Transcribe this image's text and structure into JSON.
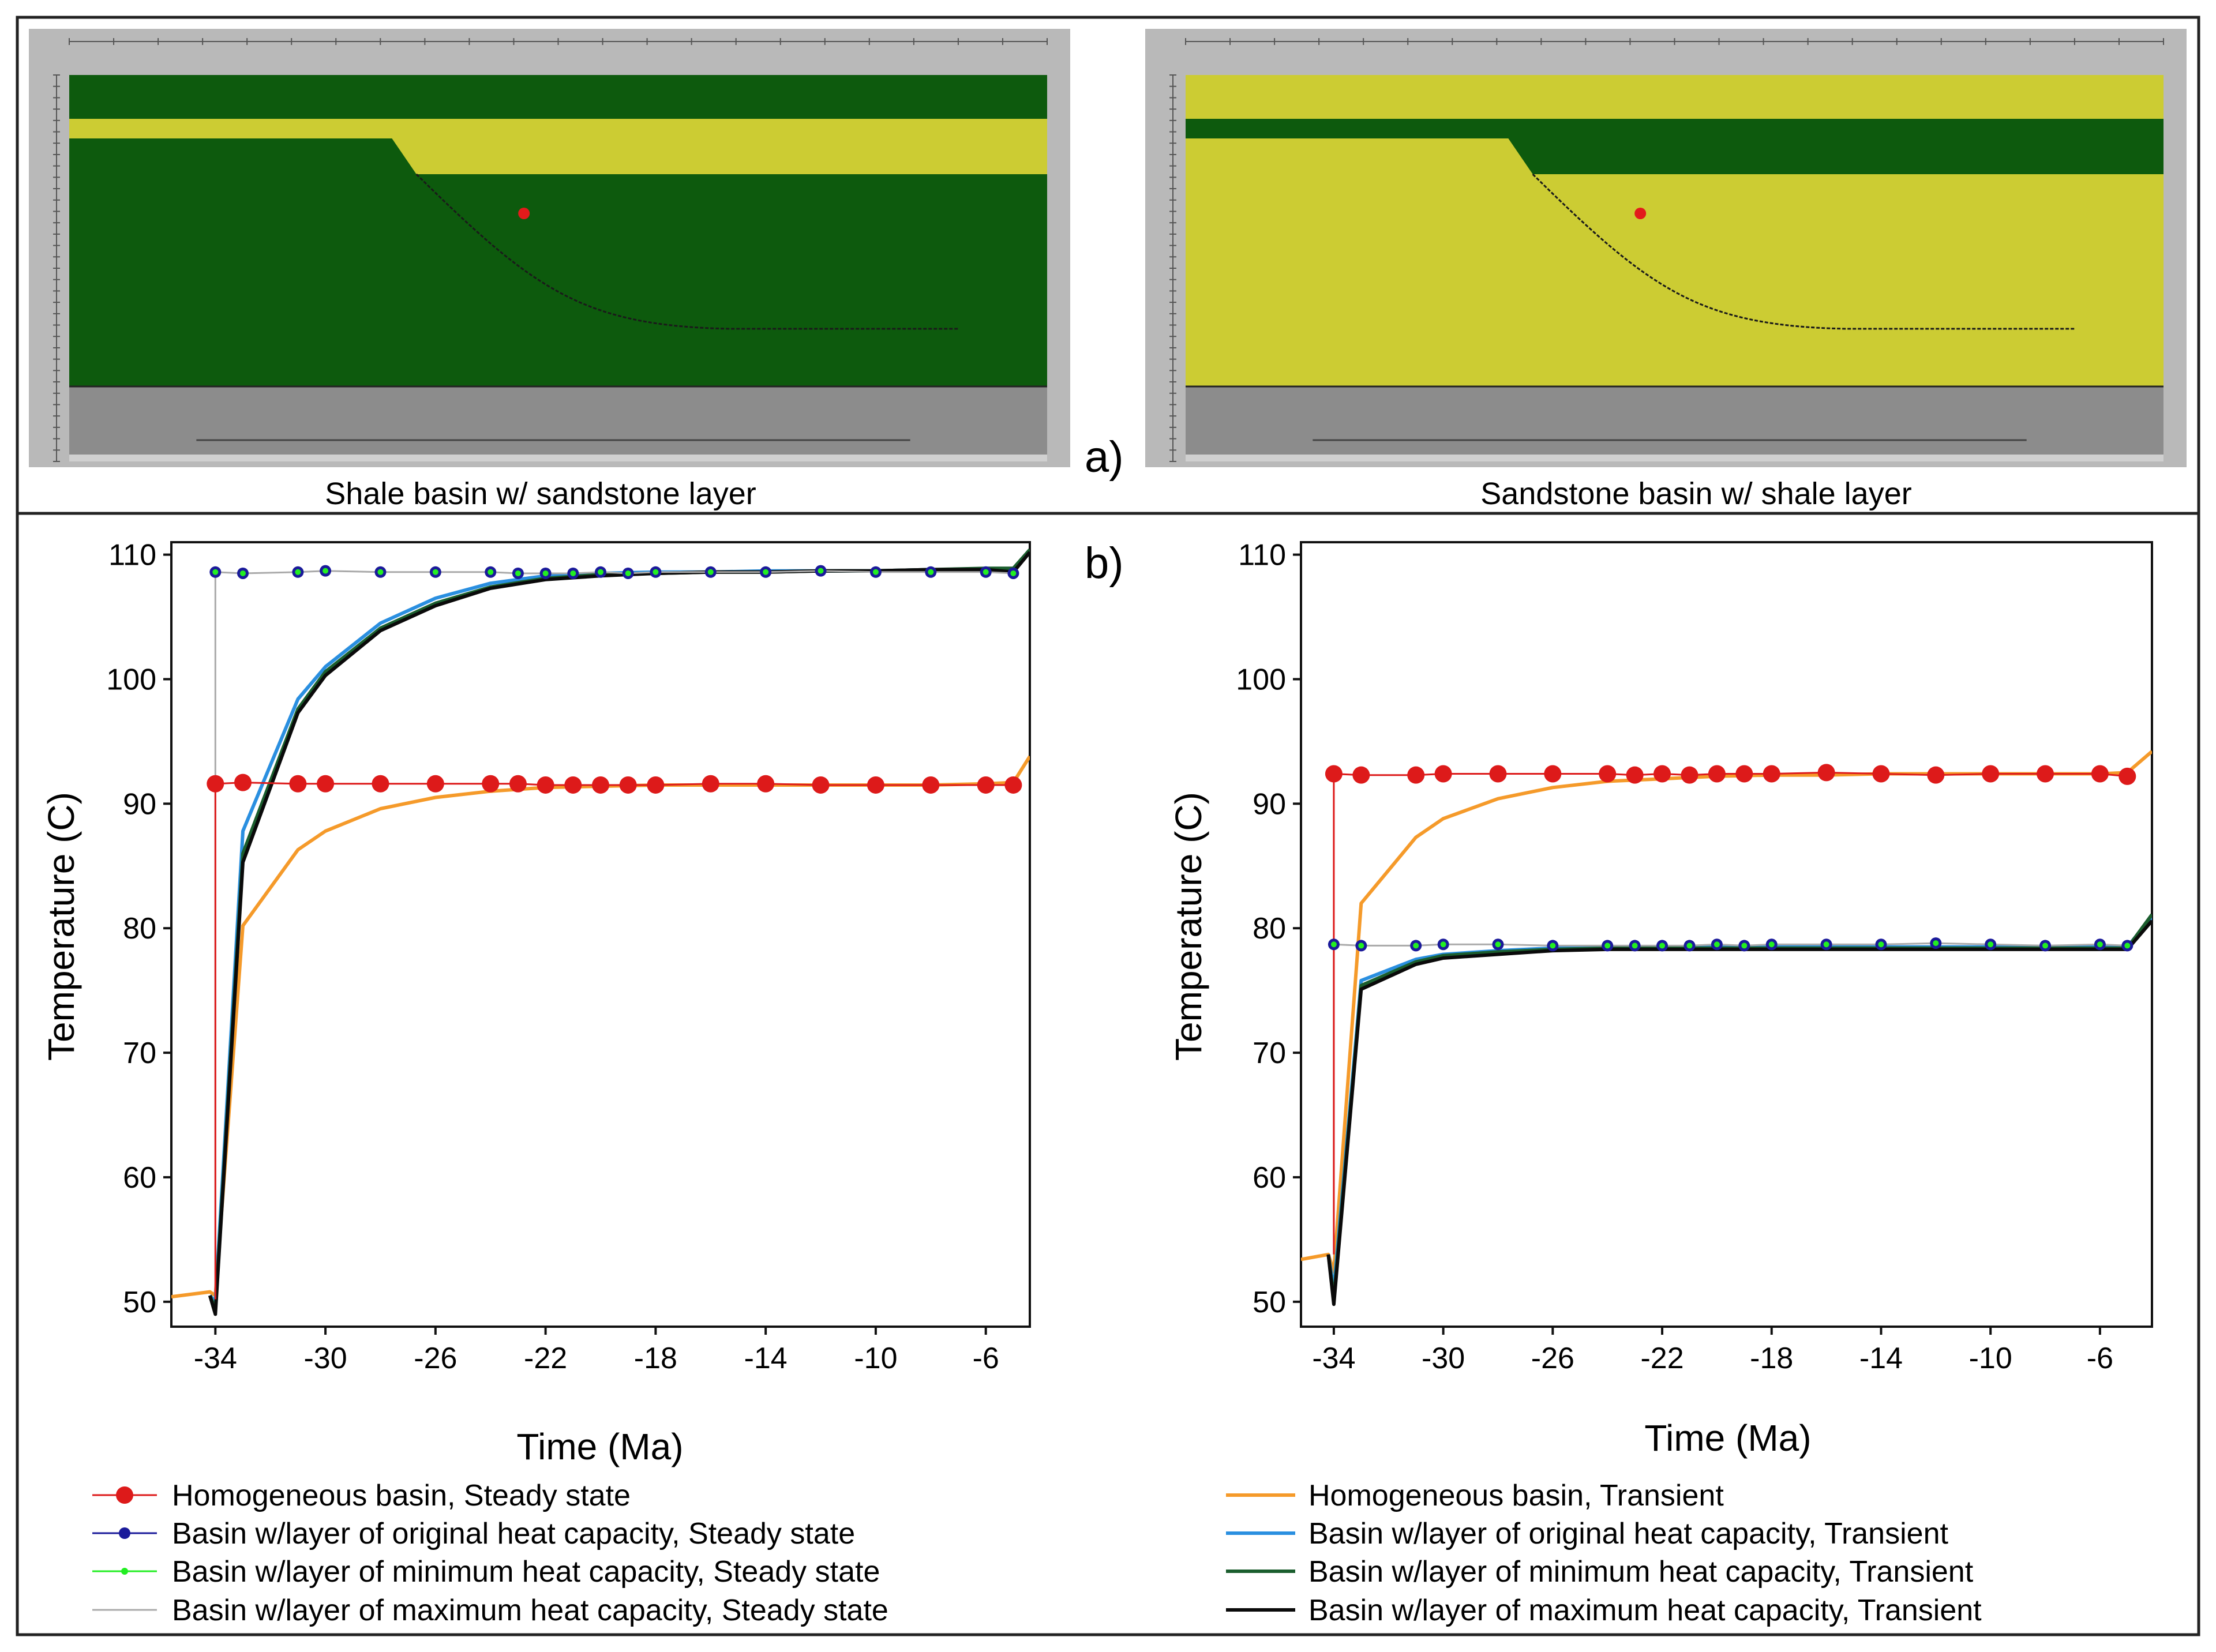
{
  "panel_labels": {
    "a": "a)",
    "b": "b)"
  },
  "sections": [
    {
      "caption": "Shale basin w/ sandstone layer"
    },
    {
      "caption": "Sandstone basin w/ shale layer"
    }
  ],
  "colors": {
    "shale": "#0d5a0d",
    "sandstone": "#cccc33",
    "basement": "#8c8c8c",
    "frame": "#b9b9b9",
    "steady_homogeneous": "#dd1a1a",
    "steady_original": "#1a1a9a",
    "steady_minimum": "#22ee22",
    "steady_maximum": "#aaaaaa",
    "transient_homogeneous": "#f59a2a",
    "transient_original": "#2a8fe0",
    "transient_minimum": "#1b5e2e",
    "transient_maximum": "#0a0a0a"
  },
  "legend": {
    "left": [
      {
        "label": "Homogeneous basin, Steady state",
        "color": "#dd1a1a",
        "marker": "big-dot"
      },
      {
        "label": "Basin w/layer of original heat capacity, Steady state",
        "color": "#1a1a9a",
        "marker": "dot"
      },
      {
        "label": "Basin w/layer of minimum heat capacity, Steady state",
        "color": "#22ee22",
        "marker": "small-dot"
      },
      {
        "label": "Basin w/layer of maximum heat capacity, Steady state",
        "color": "#aaaaaa",
        "marker": "none"
      }
    ],
    "right": [
      {
        "label": "Homogeneous basin, Transient",
        "color": "#f59a2a"
      },
      {
        "label": "Basin w/layer of original heat capacity, Transient",
        "color": "#2a8fe0"
      },
      {
        "label": "Basin w/layer of minimum heat capacity, Transient",
        "color": "#1b5e2e"
      },
      {
        "label": "Basin w/layer of maximum heat capacity, Transient",
        "color": "#0a0a0a"
      }
    ]
  },
  "chart_data": [
    {
      "type": "line",
      "title": "Shale basin w/ sandstone layer",
      "xlabel": "Time (Ma)",
      "ylabel": "Temperature (C)",
      "xlim": [
        -35.6,
        -4.4
      ],
      "ylim": [
        48,
        111
      ],
      "xticks": [
        -34,
        -30,
        -26,
        -22,
        -18,
        -14,
        -10,
        -6
      ],
      "yticks": [
        50,
        60,
        70,
        80,
        90,
        100,
        110
      ],
      "steady_x": [
        -34.0,
        -33.0,
        -31.0,
        -30.0,
        -28.0,
        -26.0,
        -24.0,
        -23.0,
        -22.0,
        -21.0,
        -20.0,
        -19.0,
        -18.0,
        -16.0,
        -14.0,
        -12.0,
        -10.0,
        -8.0,
        -6.0,
        -5.0
      ],
      "series": [
        {
          "name": "Homogeneous basin, Steady state",
          "kind": "steady",
          "color": "#dd1a1a",
          "x": [
            -34.0,
            -34.0,
            -33.0,
            -31.0,
            -30.0,
            -28.0,
            -26.0,
            -24.0,
            -23.0,
            -22.0,
            -21.0,
            -20.0,
            -19.0,
            -18.0,
            -16.0,
            -14.0,
            -12.0,
            -10.0,
            -8.0,
            -6.0,
            -5.0
          ],
          "y": [
            50.2,
            91.6,
            91.7,
            91.6,
            91.6,
            91.6,
            91.6,
            91.6,
            91.6,
            91.5,
            91.5,
            91.5,
            91.5,
            91.5,
            91.6,
            91.6,
            91.5,
            91.5,
            91.5,
            91.5,
            91.5
          ]
        },
        {
          "name": "Basin w/layer of maximum heat capacity, Steady state",
          "kind": "steady",
          "color": "#aaaaaa",
          "x": [
            -34.0,
            -34.0,
            -33.0,
            -31.0,
            -30.0,
            -28.0,
            -26.0,
            -24.0,
            -23.0,
            -22.0,
            -21.0,
            -20.0,
            -19.0,
            -18.0,
            -16.0,
            -14.0,
            -12.0,
            -10.0,
            -8.0,
            -6.0,
            -5.0
          ],
          "y": [
            50.2,
            108.6,
            108.5,
            108.6,
            108.7,
            108.6,
            108.6,
            108.6,
            108.5,
            108.5,
            108.5,
            108.6,
            108.5,
            108.6,
            108.6,
            108.6,
            108.7,
            108.6,
            108.6,
            108.6,
            108.5
          ]
        },
        {
          "name": "Basin w/layer of original heat capacity, Steady state",
          "kind": "steady",
          "color": "#1a1a9a",
          "x": [
            -34.0,
            -33.0,
            -31.0,
            -30.0,
            -28.0,
            -26.0,
            -24.0,
            -23.0,
            -22.0,
            -21.0,
            -20.0,
            -19.0,
            -18.0,
            -16.0,
            -14.0,
            -12.0,
            -10.0,
            -8.0,
            -6.0,
            -5.0
          ],
          "y": [
            108.6,
            108.5,
            108.6,
            108.7,
            108.6,
            108.6,
            108.6,
            108.5,
            108.5,
            108.5,
            108.6,
            108.5,
            108.6,
            108.6,
            108.6,
            108.7,
            108.6,
            108.6,
            108.6,
            108.5
          ]
        },
        {
          "name": "Basin w/layer of minimum heat capacity, Steady state",
          "kind": "steady",
          "color": "#22ee22",
          "x": [
            -34.0,
            -33.0,
            -31.0,
            -30.0,
            -28.0,
            -26.0,
            -24.0,
            -23.0,
            -22.0,
            -21.0,
            -20.0,
            -19.0,
            -18.0,
            -16.0,
            -14.0,
            -12.0,
            -10.0,
            -8.0,
            -6.0,
            -5.0
          ],
          "y": [
            108.6,
            108.5,
            108.6,
            108.7,
            108.6,
            108.6,
            108.6,
            108.5,
            108.5,
            108.5,
            108.6,
            108.5,
            108.6,
            108.6,
            108.6,
            108.7,
            108.6,
            108.6,
            108.6,
            108.5
          ]
        },
        {
          "name": "Homogeneous basin, Transient",
          "kind": "transient",
          "color": "#f59a2a",
          "x": [
            -35.6,
            -34.2,
            -34.0,
            -33.0,
            -31.0,
            -30.0,
            -28.0,
            -26.0,
            -24.0,
            -22.0,
            -20.0,
            -18.0,
            -16.0,
            -14.0,
            -12.0,
            -10.0,
            -8.0,
            -6.0,
            -5.0,
            -4.4
          ],
          "y": [
            50.4,
            50.8,
            50.5,
            80.2,
            86.3,
            87.8,
            89.6,
            90.5,
            91.0,
            91.3,
            91.4,
            91.5,
            91.5,
            91.5,
            91.5,
            91.5,
            91.5,
            91.6,
            91.7,
            93.8
          ]
        },
        {
          "name": "Basin w/layer of original heat capacity, Transient",
          "kind": "transient",
          "color": "#2a8fe0",
          "x": [
            -34.2,
            -34.0,
            -33.0,
            -31.0,
            -30.0,
            -28.0,
            -26.0,
            -24.0,
            -22.0,
            -20.0,
            -18.0,
            -16.0,
            -14.0,
            -12.0,
            -10.0,
            -8.0,
            -6.0,
            -5.0,
            -4.4
          ],
          "y": [
            50.5,
            50.0,
            87.8,
            98.4,
            101.0,
            104.5,
            106.5,
            107.7,
            108.3,
            108.5,
            108.6,
            108.6,
            108.7,
            108.7,
            108.7,
            108.8,
            108.8,
            108.8,
            110.2
          ]
        },
        {
          "name": "Basin w/layer of minimum heat capacity, Transient",
          "kind": "transient",
          "color": "#1b5e2e",
          "x": [
            -34.2,
            -34.0,
            -33.0,
            -31.0,
            -30.0,
            -28.0,
            -26.0,
            -24.0,
            -22.0,
            -20.0,
            -18.0,
            -16.0,
            -14.0,
            -12.0,
            -10.0,
            -8.0,
            -6.0,
            -5.0,
            -4.4
          ],
          "y": [
            50.5,
            49.4,
            86.0,
            97.6,
            100.6,
            104.1,
            106.1,
            107.4,
            108.1,
            108.4,
            108.5,
            108.6,
            108.6,
            108.7,
            108.7,
            108.8,
            108.9,
            108.9,
            110.4
          ]
        },
        {
          "name": "Basin w/layer of maximum heat capacity, Transient",
          "kind": "transient",
          "color": "#0a0a0a",
          "x": [
            -34.2,
            -34.0,
            -33.0,
            -31.0,
            -30.0,
            -28.0,
            -26.0,
            -24.0,
            -22.0,
            -20.0,
            -18.0,
            -16.0,
            -14.0,
            -12.0,
            -10.0,
            -8.0,
            -6.0,
            -5.0,
            -4.4
          ],
          "y": [
            50.5,
            49.0,
            85.3,
            97.3,
            100.3,
            103.9,
            105.9,
            107.3,
            108.0,
            108.3,
            108.5,
            108.6,
            108.6,
            108.7,
            108.7,
            108.8,
            108.8,
            108.6,
            110.2
          ]
        }
      ]
    },
    {
      "type": "line",
      "title": "Sandstone basin w/ shale layer",
      "xlabel": "Time (Ma)",
      "ylabel": "Temperature (C)",
      "xlim": [
        -35.2,
        -4.1
      ],
      "ylim": [
        48,
        111
      ],
      "xticks": [
        -34,
        -30,
        -26,
        -22,
        -18,
        -14,
        -10,
        -6
      ],
      "yticks": [
        50,
        60,
        70,
        80,
        90,
        100,
        110
      ],
      "series": [
        {
          "name": "Homogeneous basin, Steady state",
          "kind": "steady",
          "color": "#dd1a1a",
          "x": [
            -34.0,
            -34.0,
            -33.0,
            -31.0,
            -30.0,
            -28.0,
            -26.0,
            -24.0,
            -23.0,
            -22.0,
            -21.0,
            -20.0,
            -19.0,
            -18.0,
            -16.0,
            -14.0,
            -12.0,
            -10.0,
            -8.0,
            -6.0,
            -5.0
          ],
          "y": [
            53.8,
            92.4,
            92.3,
            92.3,
            92.4,
            92.4,
            92.4,
            92.4,
            92.3,
            92.4,
            92.3,
            92.4,
            92.4,
            92.4,
            92.5,
            92.4,
            92.3,
            92.4,
            92.4,
            92.4,
            92.2
          ]
        },
        {
          "name": "Basin w/layer of maximum heat capacity, Steady state",
          "kind": "steady",
          "color": "#aaaaaa",
          "x": [
            -34.0,
            -34.0,
            -33.0,
            -31.0,
            -30.0,
            -28.0,
            -26.0,
            -24.0,
            -23.0,
            -22.0,
            -21.0,
            -20.0,
            -19.0,
            -18.0,
            -16.0,
            -14.0,
            -12.0,
            -10.0,
            -8.0,
            -6.0,
            -5.0
          ],
          "y": [
            53.8,
            78.7,
            78.6,
            78.6,
            78.7,
            78.7,
            78.6,
            78.6,
            78.6,
            78.6,
            78.6,
            78.7,
            78.6,
            78.7,
            78.7,
            78.7,
            78.8,
            78.7,
            78.6,
            78.7,
            78.6
          ]
        },
        {
          "name": "Basin w/layer of original heat capacity, Steady state",
          "kind": "steady",
          "color": "#1a1a9a",
          "x": [
            -34.0,
            -33.0,
            -31.0,
            -30.0,
            -28.0,
            -26.0,
            -24.0,
            -23.0,
            -22.0,
            -21.0,
            -20.0,
            -19.0,
            -18.0,
            -16.0,
            -14.0,
            -12.0,
            -10.0,
            -8.0,
            -6.0,
            -5.0
          ],
          "y": [
            78.7,
            78.6,
            78.6,
            78.7,
            78.7,
            78.6,
            78.6,
            78.6,
            78.6,
            78.6,
            78.7,
            78.6,
            78.7,
            78.7,
            78.7,
            78.8,
            78.7,
            78.6,
            78.7,
            78.6
          ]
        },
        {
          "name": "Basin w/layer of minimum heat capacity, Steady state",
          "kind": "steady",
          "color": "#22ee22",
          "x": [
            -34.0,
            -33.0,
            -31.0,
            -30.0,
            -28.0,
            -26.0,
            -24.0,
            -23.0,
            -22.0,
            -21.0,
            -20.0,
            -19.0,
            -18.0,
            -16.0,
            -14.0,
            -12.0,
            -10.0,
            -8.0,
            -6.0,
            -5.0
          ],
          "y": [
            78.7,
            78.6,
            78.6,
            78.7,
            78.7,
            78.6,
            78.6,
            78.6,
            78.6,
            78.6,
            78.7,
            78.6,
            78.7,
            78.7,
            78.7,
            78.8,
            78.7,
            78.6,
            78.7,
            78.6
          ]
        },
        {
          "name": "Homogeneous basin, Transient",
          "kind": "transient",
          "color": "#f59a2a",
          "x": [
            -35.2,
            -34.2,
            -34.0,
            -33.0,
            -31.0,
            -30.0,
            -28.0,
            -26.0,
            -24.0,
            -22.0,
            -20.0,
            -18.0,
            -16.0,
            -14.0,
            -12.0,
            -10.0,
            -8.0,
            -6.0,
            -5.0,
            -4.1
          ],
          "y": [
            53.4,
            53.8,
            52.4,
            82.0,
            87.3,
            88.8,
            90.4,
            91.3,
            91.8,
            92.0,
            92.2,
            92.3,
            92.3,
            92.4,
            92.4,
            92.4,
            92.4,
            92.4,
            92.5,
            94.2
          ]
        },
        {
          "name": "Basin w/layer of original heat capacity, Transient",
          "kind": "transient",
          "color": "#2a8fe0",
          "x": [
            -34.2,
            -34.0,
            -33.0,
            -31.0,
            -30.0,
            -28.0,
            -26.0,
            -24.0,
            -22.0,
            -20.0,
            -18.0,
            -16.0,
            -14.0,
            -12.0,
            -10.0,
            -8.0,
            -6.0,
            -5.0,
            -4.1
          ],
          "y": [
            53.8,
            51.0,
            75.8,
            77.5,
            77.9,
            78.2,
            78.4,
            78.5,
            78.5,
            78.5,
            78.5,
            78.5,
            78.5,
            78.5,
            78.5,
            78.5,
            78.5,
            78.5,
            80.9
          ]
        },
        {
          "name": "Basin w/layer of minimum heat capacity, Transient",
          "kind": "transient",
          "color": "#1b5e2e",
          "x": [
            -34.2,
            -34.0,
            -33.0,
            -31.0,
            -30.0,
            -28.0,
            -26.0,
            -24.0,
            -22.0,
            -20.0,
            -18.0,
            -16.0,
            -14.0,
            -12.0,
            -10.0,
            -8.0,
            -6.0,
            -5.0,
            -4.1
          ],
          "y": [
            53.8,
            50.2,
            75.4,
            77.3,
            77.8,
            78.1,
            78.3,
            78.4,
            78.4,
            78.4,
            78.4,
            78.4,
            78.4,
            78.4,
            78.4,
            78.4,
            78.4,
            78.4,
            81.1
          ]
        },
        {
          "name": "Basin w/layer of maximum heat capacity, Transient",
          "kind": "transient",
          "color": "#0a0a0a",
          "x": [
            -34.2,
            -34.0,
            -33.0,
            -31.0,
            -30.0,
            -28.0,
            -26.0,
            -24.0,
            -22.0,
            -20.0,
            -18.0,
            -16.0,
            -14.0,
            -12.0,
            -10.0,
            -8.0,
            -6.0,
            -5.0,
            -4.1
          ],
          "y": [
            53.8,
            49.8,
            75.1,
            77.1,
            77.6,
            77.9,
            78.2,
            78.3,
            78.3,
            78.3,
            78.3,
            78.3,
            78.3,
            78.3,
            78.3,
            78.3,
            78.3,
            78.3,
            80.6
          ]
        }
      ]
    }
  ]
}
